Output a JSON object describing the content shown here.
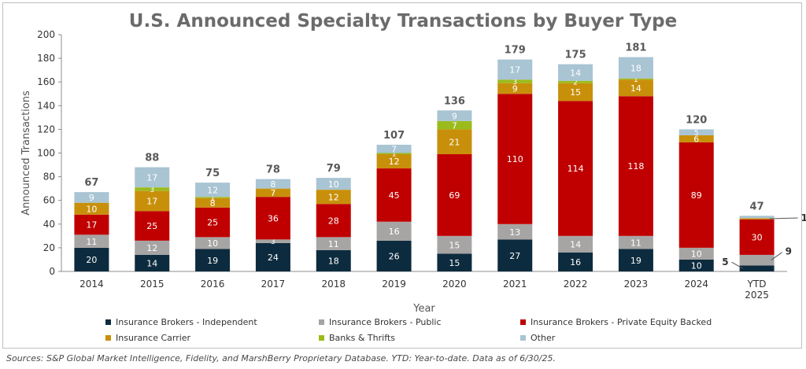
{
  "title": "U.S. Announced Specialty Transactions by Buyer Type",
  "source": "Sources: S&P Global Market Intelligence, Fidelity, and MarshBerry Proprietary Database. YTD: Year-to-date. Data as of 6/30/25.",
  "chart_data": {
    "type": "bar",
    "stacked": true,
    "title": "U.S. Announced Specialty Transactions by Buyer Type",
    "xlabel": "Year",
    "ylabel": "Announced Transactions",
    "ylim": [
      0,
      200
    ],
    "yticks": [
      0,
      20,
      40,
      60,
      80,
      100,
      120,
      140,
      160,
      180,
      200
    ],
    "categories": [
      "2014",
      "2015",
      "2016",
      "2017",
      "2018",
      "2019",
      "2020",
      "2021",
      "2022",
      "2023",
      "2024",
      "YTD 2025"
    ],
    "totals": [
      67,
      88,
      75,
      78,
      79,
      107,
      136,
      179,
      175,
      181,
      120,
      47
    ],
    "legend_position": "bottom",
    "series": [
      {
        "name": "Insurance Brokers - Independent",
        "color": "#0d2b3e",
        "values": [
          20,
          14,
          19,
          24,
          18,
          26,
          15,
          27,
          16,
          19,
          10,
          5
        ]
      },
      {
        "name": "Insurance Brokers - Public",
        "color": "#a7a4a4",
        "values": [
          11,
          12,
          10,
          3,
          11,
          16,
          15,
          13,
          14,
          11,
          10,
          9
        ]
      },
      {
        "name": "Insurance Brokers - Private Equity Backed",
        "color": "#c00000",
        "values": [
          17,
          25,
          25,
          36,
          28,
          45,
          69,
          110,
          114,
          118,
          89,
          30
        ]
      },
      {
        "name": "Insurance Carrier",
        "color": "#c8900a",
        "values": [
          10,
          17,
          8,
          7,
          12,
          12,
          21,
          9,
          15,
          14,
          6,
          1
        ]
      },
      {
        "name": "Banks & Thrifts",
        "color": "#9bbb1c",
        "values": [
          0,
          3,
          1,
          0,
          0,
          1,
          7,
          3,
          2,
          1,
          0,
          0
        ]
      },
      {
        "name": "Other",
        "color": "#a9c4d3",
        "values": [
          9,
          17,
          12,
          8,
          10,
          7,
          9,
          17,
          14,
          18,
          5,
          2
        ]
      }
    ]
  }
}
